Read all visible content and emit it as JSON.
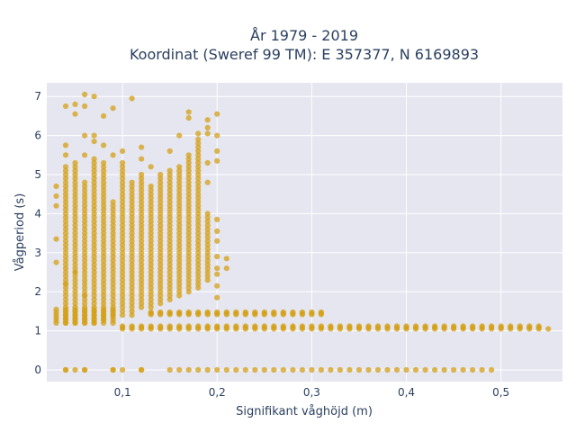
{
  "chart_data": {
    "type": "scatter",
    "title": [
      "År 1979 - 2019",
      "Koordinat (Sweref 99 TM): E 357377, N 6169893"
    ],
    "xlabel": "Signifikant våghöjd (m)",
    "ylabel": "Vågperiod (s)",
    "xlim": [
      0.02,
      0.565
    ],
    "ylim": [
      -0.3,
      7.35
    ],
    "x_ticks": [
      0.1,
      0.2,
      0.3,
      0.4,
      0.5
    ],
    "x_tick_labels": [
      "0,1",
      "0,2",
      "0,3",
      "0,4",
      "0,5"
    ],
    "y_ticks": [
      0,
      1,
      2,
      3,
      4,
      5,
      6,
      7
    ],
    "y_tick_labels": [
      "0",
      "1",
      "2",
      "3",
      "4",
      "5",
      "6",
      "7"
    ],
    "grid": true,
    "colors": {
      "marker": "#d4a017",
      "plot_bg": "#e5e6f0",
      "grid": "#ffffff",
      "text": "#2a3f5f"
    },
    "series": [
      {
        "clusters": [
          {
            "x_start": 0.03,
            "x_end": 0.49,
            "x_step": 0.01,
            "y_start": 0,
            "y_end": 0,
            "y_step": 0.05,
            "skip_x": [
              0.03,
              0.05,
              0.07,
              0.08,
              0.1,
              0.11,
              0.13,
              0.14
            ]
          },
          {
            "x_start": 0.04,
            "x_end": 0.06,
            "x_step": 0.01,
            "y_start": 0,
            "y_end": 0,
            "y_step": 0.05
          },
          {
            "x_start": 0.09,
            "x_end": 0.1,
            "x_step": 0.01,
            "y_start": 0,
            "y_end": 0,
            "y_step": 0.05
          },
          {
            "x_start": 0.12,
            "x_end": 0.12,
            "x_step": 0.01,
            "y_start": 0,
            "y_end": 0,
            "y_step": 0.05
          },
          {
            "x_start": 0.1,
            "x_end": 0.54,
            "x_step": 0.01,
            "y_start": 1.05,
            "y_end": 1.12,
            "y_step": 0.035
          },
          {
            "x_start": 0.03,
            "x_end": 0.09,
            "x_step": 0.01,
            "y_start": 1.2,
            "y_end": 1.55,
            "y_step": 0.07
          },
          {
            "x_start": 0.13,
            "x_end": 0.31,
            "x_step": 0.01,
            "y_start": 1.42,
            "y_end": 1.48,
            "y_step": 0.03
          },
          {
            "x_start": 0.04,
            "x_end": 0.04,
            "x_step": 0.01,
            "y_start": 1.2,
            "y_end": 5.2,
            "y_step": 0.1
          },
          {
            "x_start": 0.05,
            "x_end": 0.05,
            "x_step": 0.01,
            "y_start": 1.2,
            "y_end": 5.3,
            "y_step": 0.1
          },
          {
            "x_start": 0.06,
            "x_end": 0.06,
            "x_step": 0.01,
            "y_start": 1.2,
            "y_end": 4.8,
            "y_step": 0.1
          },
          {
            "x_start": 0.07,
            "x_end": 0.07,
            "x_step": 0.01,
            "y_start": 1.2,
            "y_end": 5.4,
            "y_step": 0.1
          },
          {
            "x_start": 0.08,
            "x_end": 0.08,
            "x_step": 0.01,
            "y_start": 1.3,
            "y_end": 5.3,
            "y_step": 0.1
          },
          {
            "x_start": 0.09,
            "x_end": 0.09,
            "x_step": 0.01,
            "y_start": 1.4,
            "y_end": 4.3,
            "y_step": 0.1
          },
          {
            "x_start": 0.1,
            "x_end": 0.1,
            "x_step": 0.01,
            "y_start": 1.4,
            "y_end": 5.2,
            "y_step": 0.1
          },
          {
            "x_start": 0.11,
            "x_end": 0.11,
            "x_step": 0.01,
            "y_start": 1.4,
            "y_end": 4.8,
            "y_step": 0.1
          },
          {
            "x_start": 0.12,
            "x_end": 0.12,
            "x_step": 0.01,
            "y_start": 1.6,
            "y_end": 5.0,
            "y_step": 0.1
          },
          {
            "x_start": 0.13,
            "x_end": 0.13,
            "x_step": 0.01,
            "y_start": 1.6,
            "y_end": 4.7,
            "y_step": 0.1
          },
          {
            "x_start": 0.14,
            "x_end": 0.14,
            "x_step": 0.01,
            "y_start": 1.7,
            "y_end": 5.0,
            "y_step": 0.1
          },
          {
            "x_start": 0.15,
            "x_end": 0.15,
            "x_step": 0.01,
            "y_start": 1.8,
            "y_end": 5.1,
            "y_step": 0.1
          },
          {
            "x_start": 0.16,
            "x_end": 0.16,
            "x_step": 0.01,
            "y_start": 1.9,
            "y_end": 5.2,
            "y_step": 0.1
          },
          {
            "x_start": 0.17,
            "x_end": 0.17,
            "x_step": 0.01,
            "y_start": 2.0,
            "y_end": 5.4,
            "y_step": 0.1
          },
          {
            "x_start": 0.18,
            "x_end": 0.18,
            "x_step": 0.01,
            "y_start": 2.1,
            "y_end": 5.9,
            "y_step": 0.1
          },
          {
            "x_start": 0.19,
            "x_end": 0.19,
            "x_step": 0.01,
            "y_start": 2.3,
            "y_end": 4.0,
            "y_step": 0.1
          },
          {
            "x_start": 0.03,
            "x_end": 0.03,
            "x_step": 0.01,
            "y_start": 4.2,
            "y_end": 4.7,
            "y_step": 0.25
          }
        ],
        "points": [
          [
            0.03,
            3.35
          ],
          [
            0.03,
            2.75
          ],
          [
            0.04,
            5.5
          ],
          [
            0.04,
            5.75
          ],
          [
            0.04,
            6.75
          ],
          [
            0.05,
            6.55
          ],
          [
            0.05,
            6.8
          ],
          [
            0.06,
            7.05
          ],
          [
            0.06,
            6.75
          ],
          [
            0.06,
            6.0
          ],
          [
            0.06,
            5.5
          ],
          [
            0.07,
            7.0
          ],
          [
            0.07,
            6.0
          ],
          [
            0.07,
            5.85
          ],
          [
            0.08,
            6.5
          ],
          [
            0.08,
            5.75
          ],
          [
            0.09,
            6.7
          ],
          [
            0.09,
            5.5
          ],
          [
            0.1,
            5.6
          ],
          [
            0.1,
            5.3
          ],
          [
            0.11,
            6.95
          ],
          [
            0.12,
            5.7
          ],
          [
            0.12,
            5.4
          ],
          [
            0.13,
            5.2
          ],
          [
            0.15,
            5.6
          ],
          [
            0.16,
            6.0
          ],
          [
            0.17,
            6.6
          ],
          [
            0.17,
            6.45
          ],
          [
            0.17,
            5.5
          ],
          [
            0.18,
            6.05
          ],
          [
            0.19,
            6.4
          ],
          [
            0.19,
            6.2
          ],
          [
            0.19,
            6.05
          ],
          [
            0.19,
            4.8
          ],
          [
            0.19,
            5.3
          ],
          [
            0.2,
            6.55
          ],
          [
            0.2,
            6.0
          ],
          [
            0.2,
            5.6
          ],
          [
            0.2,
            5.35
          ],
          [
            0.2,
            3.3
          ],
          [
            0.2,
            2.6
          ],
          [
            0.2,
            2.15
          ],
          [
            0.2,
            1.85
          ],
          [
            0.2,
            2.45
          ],
          [
            0.2,
            2.9
          ],
          [
            0.2,
            3.55
          ],
          [
            0.2,
            3.85
          ],
          [
            0.21,
            2.6
          ],
          [
            0.21,
            2.85
          ],
          [
            0.04,
            2.2
          ],
          [
            0.05,
            2.5
          ],
          [
            0.06,
            1.9
          ],
          [
            0.55,
            1.05
          ]
        ]
      }
    ]
  }
}
